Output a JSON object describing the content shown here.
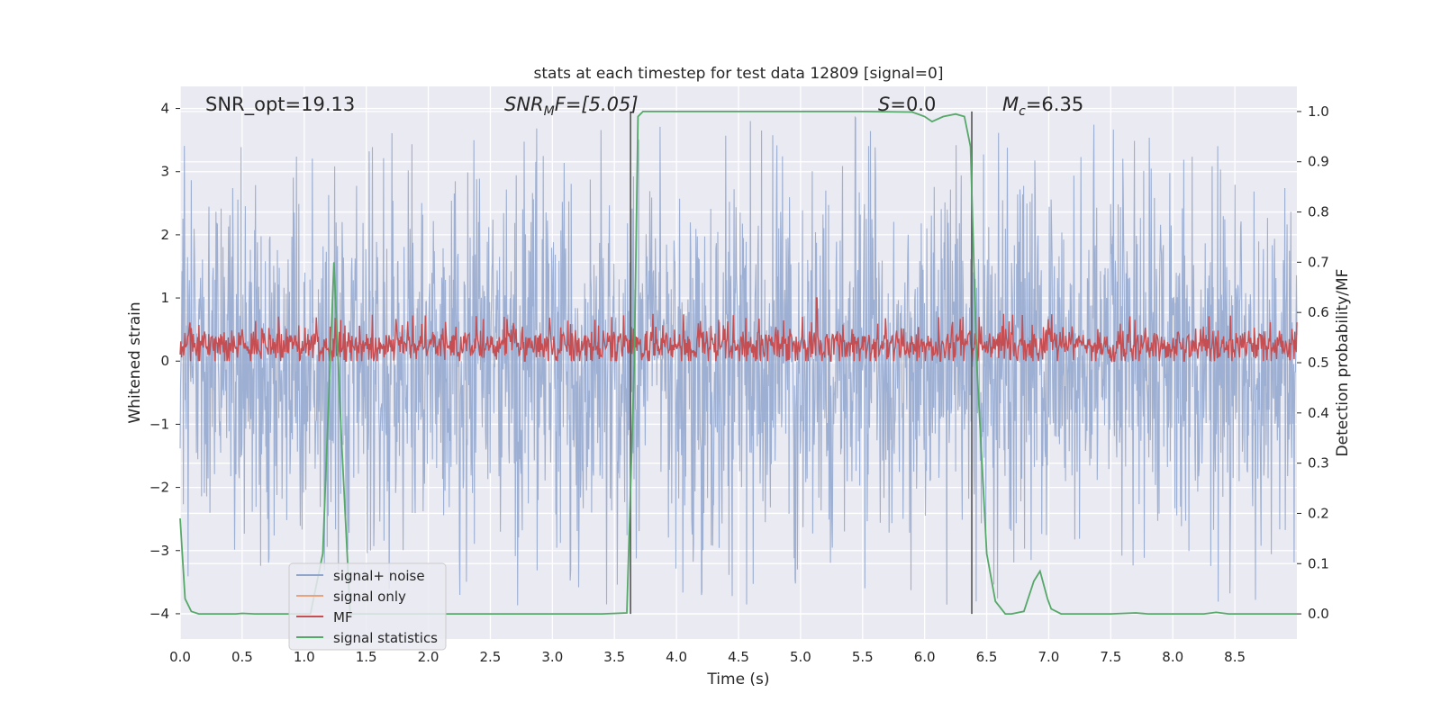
{
  "chart_data": {
    "type": "line",
    "title": "stats at each timestep for test data 12809 [signal=0]",
    "xlabel": "Time (s)",
    "ylabel": "Whitened strain",
    "ylabel_right": "Detection probability/MF",
    "xlim": [
      0.0,
      9.0
    ],
    "ylim": [
      -4.4,
      4.35
    ],
    "ylim_right": [
      -0.05,
      1.05
    ],
    "xticks": [
      "0.0",
      "0.5",
      "1.0",
      "1.5",
      "2.0",
      "2.5",
      "3.0",
      "3.5",
      "4.0",
      "4.5",
      "5.0",
      "5.5",
      "6.0",
      "6.5",
      "7.0",
      "7.5",
      "8.0",
      "8.5"
    ],
    "yticks": [
      "4",
      "3",
      "2",
      "1",
      "0",
      "−1",
      "−2",
      "−3",
      "−4"
    ],
    "yticks_right": [
      "1.0",
      "0.9",
      "0.8",
      "0.7",
      "0.6",
      "0.5",
      "0.4",
      "0.3",
      "0.2",
      "0.1",
      "0.0"
    ],
    "grid": true,
    "legend_position": "lower-left",
    "annotations": {
      "snr_opt": "SNR_opt=19.13",
      "snr_mf_base": "SNR",
      "snr_mf_sub": "M",
      "snr_mf_rest": "F=[5.05]",
      "s_base": "S",
      "s_rest": "=0.0",
      "mc_base": "M",
      "mc_sub": "c",
      "mc_rest": "=6.35"
    },
    "vertical_lines": [
      3.63,
      6.38
    ],
    "series": [
      {
        "name": "signal+ noise",
        "color": "#8fa5cc",
        "description": "whitened strain noise, roughly uniform amplitude between about -3.5 and 3.9",
        "envelope_min": -3.9,
        "envelope_max": 3.9
      },
      {
        "name": "signal only",
        "color": "#e8a27e",
        "values": []
      },
      {
        "name": "MF",
        "color": "#c44e52",
        "description": "matched filter output fluctuating about 0.25 (range ~0 to 0.75, spike near 1.0 at t=5.13)",
        "mean": 0.25,
        "range": [
          0.0,
          0.75
        ],
        "spike": {
          "x": 5.13,
          "y": 1.0
        }
      },
      {
        "name": "signal statistics",
        "color": "#55a868",
        "axis": "right",
        "x": [
          0.0,
          0.04,
          0.09,
          0.15,
          0.2,
          0.3,
          0.45,
          0.5,
          0.6,
          0.9,
          1.05,
          1.15,
          1.24,
          1.3,
          1.37,
          1.45,
          1.6,
          2.0,
          2.5,
          3.0,
          3.4,
          3.6,
          3.66,
          3.69,
          3.73,
          3.8,
          4.5,
          5.0,
          5.5,
          5.9,
          6.0,
          6.06,
          6.15,
          6.25,
          6.32,
          6.37,
          6.42,
          6.5,
          6.57,
          6.65,
          6.7,
          6.8,
          6.88,
          6.93,
          6.99,
          7.02,
          7.1,
          7.18,
          7.5,
          7.7,
          7.8,
          8.0,
          8.25,
          8.35,
          8.45,
          8.7,
          9.0
        ],
        "values": [
          0.19,
          0.03,
          0.005,
          0.0,
          0.0,
          0.0,
          0.0,
          0.001,
          0.0,
          0.0,
          0.0,
          0.12,
          0.7,
          0.35,
          0.0,
          0.0,
          0.0,
          0.0,
          0.0,
          0.0,
          0.0,
          0.002,
          0.5,
          0.99,
          1.0,
          1.0,
          1.0,
          1.0,
          1.0,
          0.999,
          0.99,
          0.98,
          0.99,
          0.995,
          0.99,
          0.93,
          0.5,
          0.12,
          0.025,
          0.0,
          0.0,
          0.005,
          0.065,
          0.085,
          0.03,
          0.01,
          0.0,
          0.0,
          0.0,
          0.002,
          0.0,
          0.0,
          0.0,
          0.003,
          0.0,
          0.0,
          0.0
        ]
      }
    ]
  }
}
